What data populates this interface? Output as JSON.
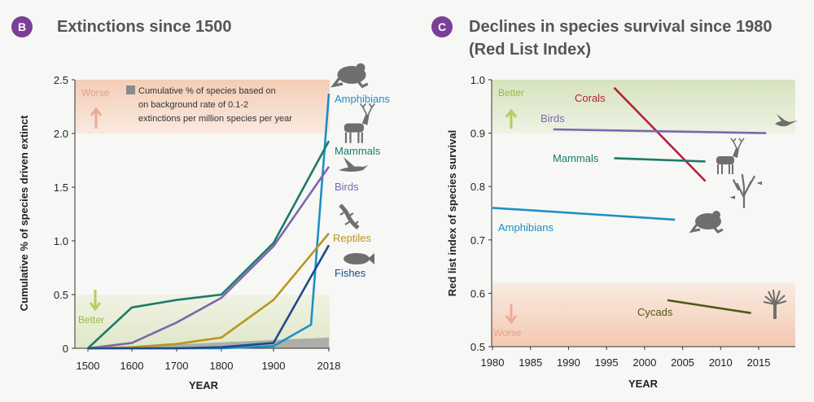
{
  "panelB": {
    "badge": "B",
    "title": "Extinctions since 1500"
  },
  "panelC": {
    "badge": "C",
    "title_line1": "Declines in species survival since 1980",
    "title_line2": "(Red List Index)"
  },
  "chart_data": [
    {
      "type": "line",
      "title": "Extinctions since 1500",
      "xlabel": "YEAR",
      "ylabel": "Cumulative % of species driven extinct",
      "xticks": [
        "1500",
        "1600",
        "1700",
        "1800",
        "1900",
        "2018"
      ],
      "yticks": [
        "0",
        "0.5",
        "1.0",
        "1.5",
        "2.0",
        "2.5"
      ],
      "ylim": [
        0,
        2.5
      ],
      "note_lines": [
        "Cumulative % of species based on",
        "on background rate of 0.1-2",
        "extinctions per million species per year"
      ],
      "worse_label": "Worse",
      "better_label": "Better",
      "background_rate": {
        "x": [
          1500,
          2018
        ],
        "y": [
          0,
          0.1
        ]
      },
      "series": [
        {
          "name": "Amphibians",
          "color": "#1e8fc4",
          "icon": "frog-icon",
          "x": [
            1500,
            1600,
            1700,
            1800,
            1900,
            1980,
            2018
          ],
          "y": [
            0,
            0,
            0,
            0,
            0.02,
            0.22,
            2.37
          ]
        },
        {
          "name": "Mammals",
          "color": "#1c7a6a",
          "icon": "deer-icon",
          "x": [
            1500,
            1600,
            1700,
            1800,
            1900,
            2018
          ],
          "y": [
            0,
            0.38,
            0.45,
            0.5,
            0.98,
            1.93
          ]
        },
        {
          "name": "Birds",
          "color": "#7d66b0",
          "icon": "bird-icon",
          "x": [
            1500,
            1600,
            1700,
            1800,
            1900,
            2018
          ],
          "y": [
            0,
            0.05,
            0.24,
            0.47,
            0.95,
            1.69
          ]
        },
        {
          "name": "Reptiles",
          "color": "#b8961c",
          "icon": "lizard-icon",
          "x": [
            1500,
            1600,
            1700,
            1800,
            1900,
            2018
          ],
          "y": [
            0,
            0.01,
            0.04,
            0.1,
            0.45,
            1.07
          ]
        },
        {
          "name": "Fishes",
          "color": "#1d4b8c",
          "icon": "fish-icon",
          "x": [
            1500,
            1600,
            1700,
            1800,
            1900,
            2018
          ],
          "y": [
            0,
            0,
            0,
            0.01,
            0.05,
            0.96
          ]
        }
      ]
    },
    {
      "type": "line",
      "title": "Declines in species survival since 1980 (Red List Index)",
      "xlabel": "YEAR",
      "ylabel": "Red list index of species survival",
      "xticks": [
        "1980",
        "1985",
        "1990",
        "1995",
        "2000",
        "2005",
        "2010",
        "2015"
      ],
      "yticks": [
        "0.5",
        "0.6",
        "0.7",
        "0.8",
        "0.9",
        "1.0"
      ],
      "xlim": [
        1980,
        2018
      ],
      "ylim": [
        0.5,
        1.0
      ],
      "better_label": "Better",
      "worse_label": "Worse",
      "series": [
        {
          "name": "Corals",
          "color": "#b3213a",
          "icon": "coral-icon",
          "x": [
            1996,
            2008
          ],
          "y": [
            0.985,
            0.81
          ]
        },
        {
          "name": "Birds",
          "color": "#7d66b0",
          "icon": "hummingbird-icon",
          "x": [
            1988,
            2016
          ],
          "y": [
            0.907,
            0.9
          ]
        },
        {
          "name": "Mammals",
          "color": "#1c7a6a",
          "icon": "deer-icon",
          "x": [
            1996,
            2008
          ],
          "y": [
            0.853,
            0.847
          ]
        },
        {
          "name": "Amphibians",
          "color": "#1e8fc4",
          "icon": "frog-icon",
          "x": [
            1980,
            2004
          ],
          "y": [
            0.76,
            0.738
          ]
        },
        {
          "name": "Cycads",
          "color": "#4f5a14",
          "icon": "cycad-icon",
          "x": [
            2003,
            2014
          ],
          "y": [
            0.587,
            0.563
          ]
        }
      ]
    }
  ]
}
